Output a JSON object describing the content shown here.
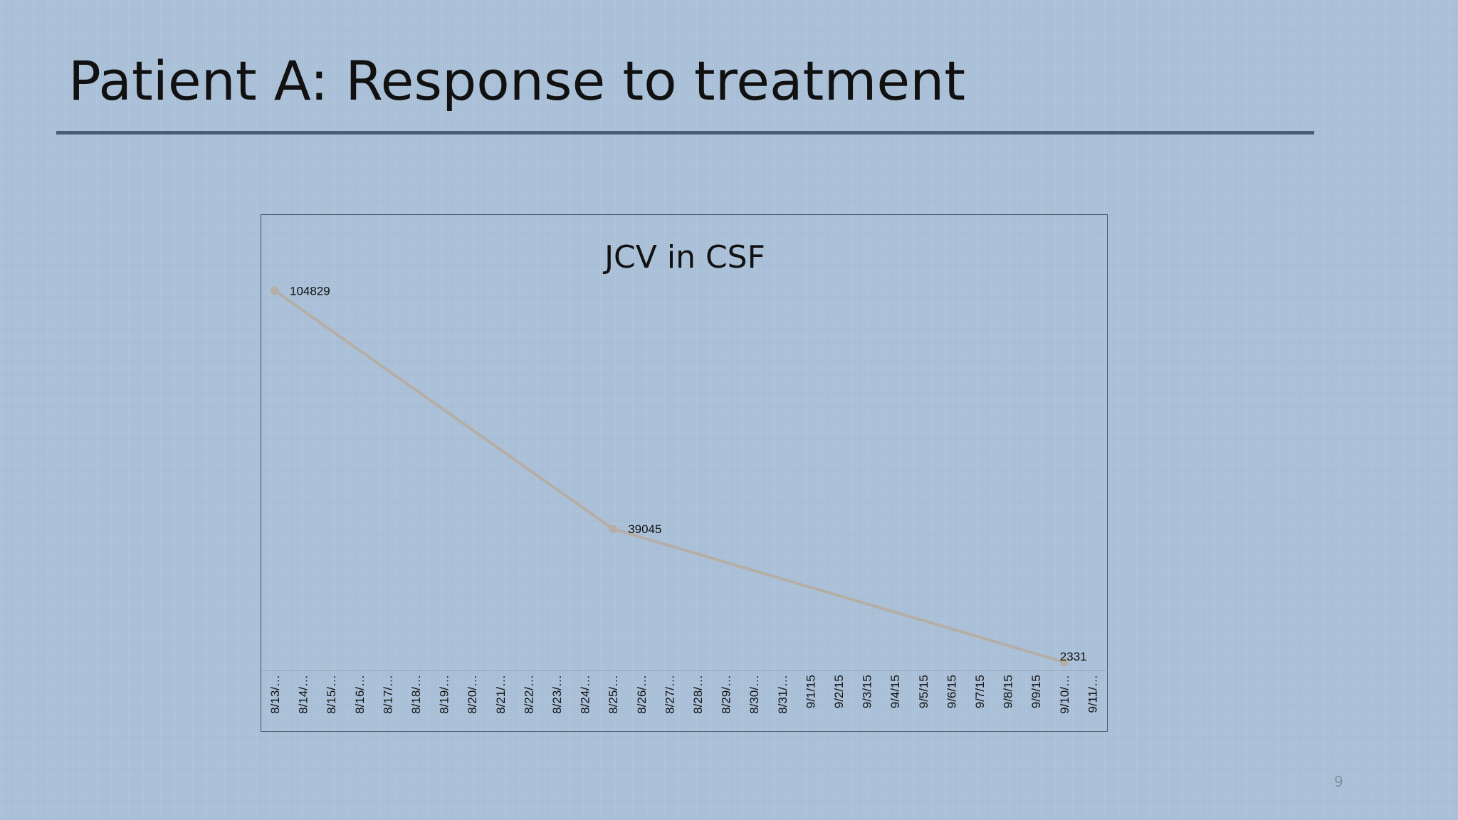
{
  "slide": {
    "title": "Patient A: Response to treatment",
    "page_number": "9"
  },
  "colors": {
    "background": "#a9c0d8",
    "rule": "#4a5e78",
    "series_line": "#b5aea6",
    "chart_border": "#4a5566"
  },
  "chart_data": {
    "type": "line",
    "title": "JCV in CSF",
    "xlabel": "",
    "ylabel": "",
    "grid": false,
    "legend": "none",
    "ylim": [
      0,
      110000
    ],
    "categories": [
      "8/13/…",
      "8/14/…",
      "8/15/…",
      "8/16/…",
      "8/17/…",
      "8/18/…",
      "8/19/…",
      "8/20/…",
      "8/21/…",
      "8/22/…",
      "8/23/…",
      "8/24/…",
      "8/25/…",
      "8/26/…",
      "8/27/…",
      "8/28/…",
      "8/29/…",
      "8/30/…",
      "8/31/…",
      "9/1/15",
      "9/2/15",
      "9/3/15",
      "9/4/15",
      "9/5/15",
      "9/6/15",
      "9/7/15",
      "9/8/15",
      "9/9/15",
      "9/10/…",
      "9/11/…"
    ],
    "series": [
      {
        "points": [
          {
            "category": "8/13/…",
            "value": 104829,
            "label": "104829"
          },
          {
            "category": "8/25/…",
            "value": 39045,
            "label": "39045"
          },
          {
            "category": "9/10/…",
            "value": 2331,
            "label": "2331"
          }
        ]
      }
    ]
  }
}
